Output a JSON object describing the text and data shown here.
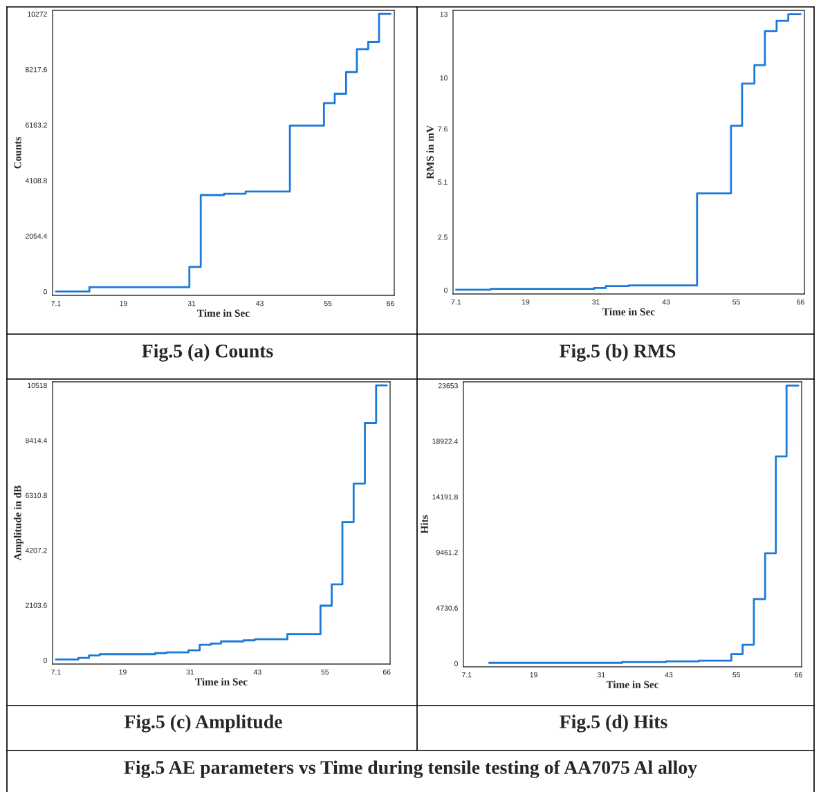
{
  "chart_data": [
    {
      "type": "step",
      "title": "Fig.5 (a) Counts",
      "xlabel": "Time in Sec",
      "ylabel": "Counts",
      "color": "#1a7ad8",
      "x": [
        7.1,
        13.0,
        30.6,
        32.6,
        36.7,
        40.5,
        48.3,
        54.3,
        56.2,
        58.2,
        60.1,
        62.1,
        64.0,
        66.0
      ],
      "values": [
        0,
        160,
        910,
        3570,
        3620,
        3700,
        6140,
        6970,
        7320,
        8120,
        8970,
        9240,
        10272,
        10272
      ],
      "xlim": [
        6.51,
        66.68
      ],
      "ylim": [
        -142,
        10405
      ],
      "xticks": [
        7.1,
        19,
        31,
        43,
        55,
        66
      ],
      "yticks": [
        0,
        2054.4,
        4108.8,
        6163.2,
        8217.6,
        10272
      ]
    },
    {
      "type": "step",
      "title": "Fig.5 (b) RMS",
      "xlabel": "Time in Sec",
      "ylabel": "RMS in mV",
      "color": "#1a7ad8",
      "x": [
        7.1,
        13.0,
        30.7,
        32.7,
        36.6,
        48.3,
        54.1,
        56.0,
        58.1,
        59.9,
        61.9,
        63.9,
        66.0
      ],
      "values": [
        0.02,
        0.06,
        0.1,
        0.19,
        0.22,
        4.56,
        7.74,
        9.73,
        10.6,
        12.21,
        12.69,
        13.0,
        13.0
      ],
      "xlim": [
        6.58,
        66.65
      ],
      "ylim": [
        -0.18,
        13.18
      ],
      "xticks": [
        7.1,
        19,
        31,
        43,
        55,
        66
      ],
      "yticks": [
        0,
        2.5,
        5.1,
        7.6,
        10,
        13
      ]
    },
    {
      "type": "step",
      "title": "Fig.5 (c) Amplitude",
      "xlabel": "Time in Sec",
      "ylabel": "Amplitude in dB",
      "color": "#1a7ad8",
      "x": [
        7.1,
        11.1,
        13.0,
        14.9,
        24.8,
        26.8,
        30.7,
        32.7,
        34.7,
        36.5,
        40.5,
        42.5,
        48.3,
        54.2,
        56.2,
        58.1,
        60.1,
        62.1,
        64.1,
        66.0
      ],
      "values": [
        30,
        90,
        180,
        230,
        270,
        300,
        380,
        590,
        640,
        720,
        760,
        800,
        1000,
        2090,
        2900,
        5290,
        6760,
        9080,
        10518,
        10518
      ],
      "xlim": [
        6.51,
        66.59
      ],
      "ylim": [
        -147,
        10655
      ],
      "xticks": [
        7.1,
        19,
        31,
        43,
        55,
        66
      ],
      "yticks": [
        0,
        2103.6,
        4207.2,
        6310.8,
        8414.4,
        10518
      ]
    },
    {
      "type": "step",
      "title": "Fig.5 (d) Hits",
      "xlabel": "Time in Sec",
      "ylabel": "Hits",
      "color": "#1a7ad8",
      "x": [
        11.1,
        34.7,
        42.5,
        48.3,
        54.1,
        56.1,
        58.1,
        60.1,
        62.0,
        63.9,
        66.0
      ],
      "values": [
        60,
        130,
        190,
        240,
        810,
        1600,
        5480,
        9380,
        17620,
        23653,
        23653
      ],
      "xlim": [
        6.52,
        66.58
      ],
      "ylim": [
        -278,
        23974
      ],
      "xticks": [
        7.1,
        19,
        31,
        43,
        55,
        66
      ],
      "yticks": [
        0,
        4730.6,
        9461.2,
        14191.8,
        18922.4,
        23653
      ],
      "annotations": [
        "Fig.5 AE parameters vs Time during tensile testing of AA7075 Al alloy"
      ]
    }
  ]
}
